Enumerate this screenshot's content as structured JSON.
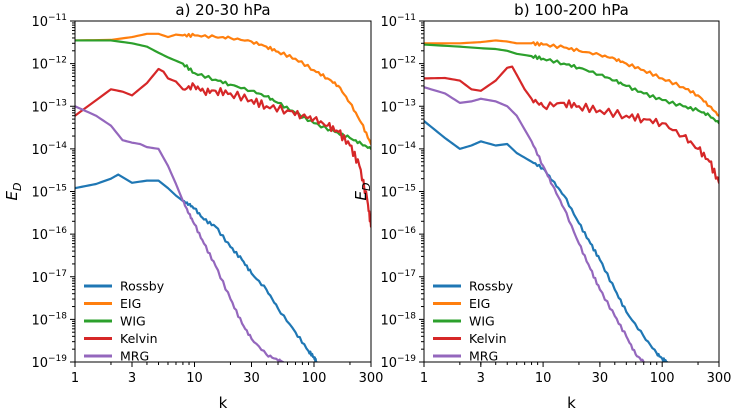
{
  "chart_data": [
    {
      "type": "line",
      "title": "a) 20-30 hPa",
      "xlabel": "k",
      "ylabel_main": "E",
      "ylabel_sub": "D",
      "xscale": "log",
      "yscale": "log",
      "xlim": [
        1,
        300
      ],
      "ylim_exponents": [
        -19,
        -11
      ],
      "xticks": [
        1,
        3,
        10,
        30,
        100,
        300
      ],
      "xtick_labels": [
        "1",
        "3",
        "10",
        "30",
        "100",
        "300"
      ],
      "yticks_exponent": [
        -19,
        -18,
        -17,
        -16,
        -15,
        -14,
        -13,
        -12,
        -11
      ],
      "ytick_base": "10",
      "ytick_exponent_labels": [
        "−19",
        "−18",
        "−17",
        "−16",
        "−15",
        "−14",
        "−13",
        "−12",
        "−11"
      ],
      "legend_position": "lower-left",
      "series": [
        {
          "name": "Rossby",
          "color": "#1f77b4",
          "x": [
            1,
            1.5,
            2,
            2.3,
            3,
            4,
            5,
            6,
            7,
            8,
            9,
            10,
            12,
            15,
            20,
            25,
            30,
            40,
            50,
            70,
            90,
            100,
            105
          ],
          "y": [
            1.2e-15,
            1.5e-15,
            2e-15,
            2.5e-15,
            1.6e-15,
            1.8e-15,
            1.8e-15,
            1.2e-15,
            8e-16,
            6e-16,
            5e-16,
            4e-16,
            2.2e-16,
            1.5e-16,
            5e-17,
            2.5e-17,
            1.2e-17,
            5e-18,
            1.8e-18,
            5e-19,
            1.8e-19,
            1.3e-19,
            1e-19
          ]
        },
        {
          "name": "EIG",
          "color": "#ff7f0e",
          "x": [
            1,
            2,
            3,
            4,
            5,
            6,
            7,
            8,
            10,
            15,
            20,
            30,
            40,
            50,
            70,
            100,
            130,
            160,
            200,
            250,
            300
          ],
          "y": [
            3.5e-12,
            3.6e-12,
            4.2e-12,
            5e-12,
            5e-12,
            4.2e-12,
            4.8e-12,
            4.6e-12,
            4.6e-12,
            4.2e-12,
            4e-12,
            3.3e-12,
            2.5e-12,
            1.9e-12,
            1.3e-12,
            7e-13,
            4.5e-13,
            3e-13,
            1.2e-13,
            4e-14,
            1.3e-14
          ]
        },
        {
          "name": "WIG",
          "color": "#2ca02c",
          "x": [
            1,
            2,
            3,
            4,
            5,
            6,
            8,
            10,
            15,
            20,
            30,
            40,
            50,
            70,
            100,
            150,
            200,
            250,
            300
          ],
          "y": [
            3.5e-12,
            3.5e-12,
            3e-12,
            2.5e-12,
            1.8e-12,
            1.4e-12,
            1e-12,
            6e-13,
            4.2e-13,
            3.2e-13,
            2.3e-13,
            1.7e-13,
            1.2e-13,
            7e-14,
            4e-14,
            2.5e-14,
            1.8e-14,
            1.3e-14,
            1e-14
          ]
        },
        {
          "name": "Kelvin",
          "color": "#d62728",
          "x": [
            1,
            2,
            2.5,
            3,
            4,
            5,
            5.5,
            6,
            7,
            8,
            10,
            12,
            15,
            20,
            30,
            40,
            60,
            80,
            100,
            130,
            160,
            200,
            240,
            280,
            300
          ],
          "y": [
            6e-14,
            2.5e-13,
            2.2e-13,
            1.8e-13,
            3.5e-13,
            7.5e-13,
            6.5e-13,
            4.5e-13,
            3.8e-13,
            2.5e-13,
            3e-13,
            2.2e-13,
            2.3e-13,
            2e-13,
            1.4e-13,
            1e-13,
            8e-14,
            6e-14,
            5e-14,
            3.5e-14,
            2.5e-14,
            1.2e-14,
            4e-15,
            6e-16,
            1.5e-16
          ]
        },
        {
          "name": "MRG",
          "color": "#9467bd",
          "x": [
            1,
            1.5,
            2,
            2.5,
            3,
            3.5,
            4,
            5,
            6,
            7,
            8,
            9,
            10,
            12,
            15,
            20,
            25,
            30,
            40,
            50,
            55
          ],
          "y": [
            1e-13,
            6e-14,
            3.5e-14,
            1.6e-14,
            1.4e-14,
            1.3e-14,
            1.1e-14,
            1e-14,
            4e-15,
            1.5e-15,
            6e-16,
            3e-16,
            1.7e-16,
            6e-17,
            1.8e-17,
            3e-18,
            8e-19,
            3.5e-19,
            1.5e-19,
            1.1e-19,
            1e-19
          ]
        }
      ]
    },
    {
      "type": "line",
      "title": "b) 100-200 hPa",
      "xlabel": "k",
      "ylabel_main": "E",
      "ylabel_sub": "D",
      "xscale": "log",
      "yscale": "log",
      "xlim": [
        1,
        300
      ],
      "ylim_exponents": [
        -19,
        -11
      ],
      "xticks": [
        1,
        3,
        10,
        30,
        100,
        300
      ],
      "xtick_labels": [
        "1",
        "3",
        "10",
        "30",
        "100",
        "300"
      ],
      "yticks_exponent": [
        -19,
        -18,
        -17,
        -16,
        -15,
        -14,
        -13,
        -12,
        -11
      ],
      "legend_position": "lower-left",
      "series": [
        {
          "name": "Rossby",
          "color": "#1f77b4",
          "x": [
            1,
            1.5,
            2,
            2.5,
            3,
            4,
            5,
            6,
            8,
            10,
            12,
            15,
            20,
            25,
            30,
            40,
            50,
            70,
            90,
            100,
            110
          ],
          "y": [
            4.5e-14,
            1.8e-14,
            1e-14,
            1.2e-14,
            1.5e-14,
            1.2e-14,
            1.3e-14,
            8e-15,
            5e-15,
            3.5e-15,
            1.8e-15,
            8e-16,
            1.8e-16,
            6e-17,
            2.5e-17,
            5e-18,
            1.5e-18,
            4e-19,
            1.6e-19,
            1.2e-19,
            1e-19
          ]
        },
        {
          "name": "EIG",
          "color": "#ff7f0e",
          "x": [
            1,
            2,
            3,
            4,
            5,
            6,
            8,
            10,
            15,
            20,
            30,
            40,
            50,
            70,
            100,
            150,
            200,
            250,
            300
          ],
          "y": [
            3e-12,
            3e-12,
            3.2e-12,
            3.5e-12,
            3.3e-12,
            3e-12,
            3e-12,
            2.8e-12,
            2.4e-12,
            2e-12,
            1.6e-12,
            1.3e-12,
            1e-12,
            7e-13,
            4.5e-13,
            2.8e-13,
            1.8e-13,
            1e-13,
            6e-14
          ]
        },
        {
          "name": "WIG",
          "color": "#2ca02c",
          "x": [
            1,
            2,
            3,
            4,
            5,
            6,
            8,
            10,
            15,
            20,
            30,
            40,
            50,
            70,
            100,
            150,
            200,
            250,
            300
          ],
          "y": [
            2.8e-12,
            2.5e-12,
            2.3e-12,
            2.2e-12,
            2e-12,
            1.7e-12,
            1.5e-12,
            1.3e-12,
            1e-12,
            8e-13,
            5.5e-13,
            4e-13,
            3e-13,
            2e-13,
            1.4e-13,
            1e-13,
            8e-14,
            6e-14,
            4e-14
          ]
        },
        {
          "name": "Kelvin",
          "color": "#d62728",
          "x": [
            1,
            1.5,
            2,
            2.5,
            3,
            4,
            5,
            5.5,
            6,
            7,
            8,
            10,
            15,
            20,
            30,
            50,
            70,
            100,
            150,
            200,
            250,
            300
          ],
          "y": [
            4.5e-13,
            4.6e-13,
            4e-13,
            2.5e-13,
            2.3e-13,
            4e-13,
            8e-13,
            8.5e-13,
            5.5e-13,
            2.5e-13,
            1.5e-13,
            1e-13,
            1.2e-13,
            1e-13,
            8e-14,
            6e-14,
            5e-14,
            4e-14,
            2e-14,
            1e-14,
            5e-15,
            1.6e-15
          ]
        },
        {
          "name": "MRG",
          "color": "#9467bd",
          "x": [
            1,
            1.5,
            2,
            2.5,
            3,
            4,
            5,
            6,
            8,
            10,
            12,
            15,
            20,
            25,
            30,
            40,
            50,
            60,
            70
          ],
          "y": [
            2.8e-13,
            2e-13,
            1.2e-13,
            1.3e-13,
            1.5e-13,
            1.3e-13,
            1e-13,
            6e-14,
            1.5e-14,
            4e-15,
            1.4e-15,
            4e-16,
            6e-17,
            1.5e-17,
            5e-18,
            1.2e-18,
            4e-19,
            1.5e-19,
            1e-19
          ]
        }
      ]
    }
  ]
}
